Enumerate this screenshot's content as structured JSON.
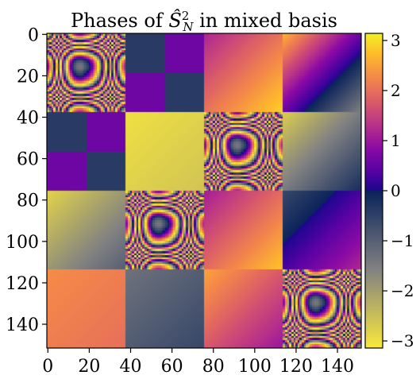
{
  "chart_data": {
    "type": "heatmap",
    "title_prefix": "Phases of ",
    "title_operator": "Ŝ",
    "title_sup": "2",
    "title_sub": "N",
    "title_suffix": " in mixed basis",
    "xlabel": "",
    "ylabel": "",
    "matrix_size": 152,
    "block_size": 38,
    "x_ticks": [
      0,
      20,
      40,
      60,
      80,
      100,
      120,
      140
    ],
    "y_ticks": [
      0,
      20,
      40,
      60,
      80,
      100,
      120,
      140
    ],
    "colorbar": {
      "cmap": "plasma",
      "range": [
        -3.1416,
        3.1416
      ],
      "ticks": [
        3,
        2,
        1,
        0,
        -1,
        -2,
        -3
      ],
      "tick_labels": [
        "3",
        "2",
        "1",
        "0",
        "−1",
        "−2",
        "−3"
      ]
    },
    "blocks": [
      {
        "row": 0,
        "col": 0,
        "pattern": "concentric-rings"
      },
      {
        "row": 0,
        "col": 1,
        "pattern": "checker-phase",
        "values": [
          -0.4,
          0.6
        ]
      },
      {
        "row": 0,
        "col": 2,
        "pattern": "gradient",
        "from": 1.2,
        "to": 2.9
      },
      {
        "row": 0,
        "col": 3,
        "pattern": "gradient",
        "from": 2.6,
        "to": -1.5
      },
      {
        "row": 1,
        "col": 0,
        "pattern": "checker-phase",
        "values": [
          -0.4,
          0.6
        ]
      },
      {
        "row": 1,
        "col": 1,
        "pattern": "gradient",
        "from": -3.0,
        "to": -2.6
      },
      {
        "row": 1,
        "col": 2,
        "pattern": "concentric-rings"
      },
      {
        "row": 1,
        "col": 3,
        "pattern": "gradient",
        "from": -2.7,
        "to": -0.2
      },
      {
        "row": 2,
        "col": 0,
        "pattern": "gradient",
        "from": -2.8,
        "to": -1.0
      },
      {
        "row": 2,
        "col": 1,
        "pattern": "concentric-rings"
      },
      {
        "row": 2,
        "col": 2,
        "pattern": "gradient",
        "from": 1.1,
        "to": 2.8
      },
      {
        "row": 2,
        "col": 3,
        "pattern": "gradient",
        "from": -0.6,
        "to": 1.2
      },
      {
        "row": 3,
        "col": 0,
        "pattern": "gradient",
        "from": 2.3,
        "to": 2.0
      },
      {
        "row": 3,
        "col": 1,
        "pattern": "gradient",
        "from": -1.3,
        "to": -0.6
      },
      {
        "row": 3,
        "col": 2,
        "pattern": "gradient",
        "from": 2.5,
        "to": 1.0
      },
      {
        "row": 3,
        "col": 3,
        "pattern": "concentric-rings"
      }
    ]
  }
}
